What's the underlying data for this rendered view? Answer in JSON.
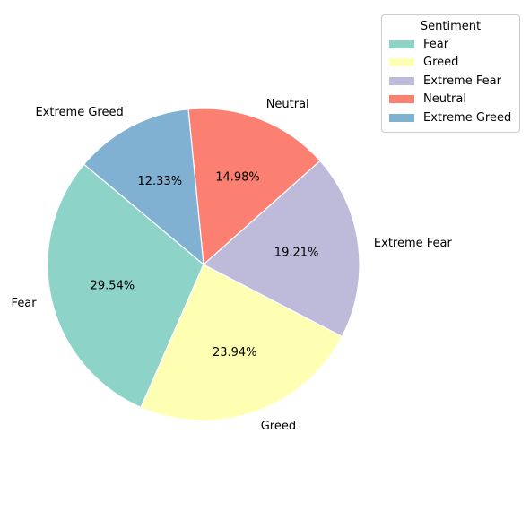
{
  "chart_data": {
    "type": "pie",
    "categories": [
      "Fear",
      "Greed",
      "Extreme Fear",
      "Neutral",
      "Extreme Greed"
    ],
    "values": [
      29.54,
      23.94,
      19.21,
      14.98,
      12.33
    ],
    "percent_labels": [
      "29.54%",
      "23.94%",
      "19.21%",
      "14.98%",
      "12.33%"
    ],
    "colors": [
      "#8dd3c7",
      "#ffffb3",
      "#bebada",
      "#fb8072",
      "#80b1d3"
    ],
    "start_angle_deg": 140,
    "direction": "counterclockwise",
    "legend": {
      "title": "Sentiment",
      "placement": "upper-right-outside",
      "entries": [
        "Fear",
        "Greed",
        "Extreme Fear",
        "Neutral",
        "Extreme Greed"
      ]
    }
  }
}
